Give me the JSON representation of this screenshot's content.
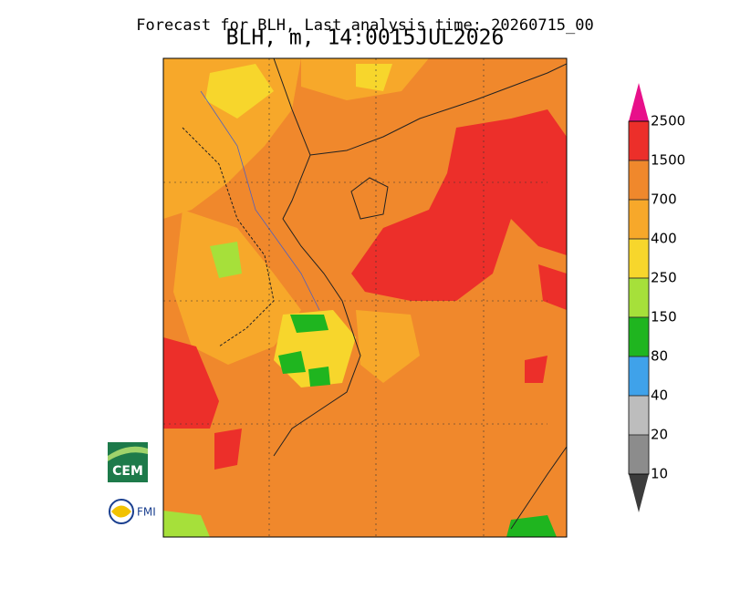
{
  "header": {
    "title": "Forecast for BLH, Last analysis time: 20260715_00",
    "subtitle": "BLH, m, 14:0015JUL2026"
  },
  "colorbar": {
    "levels": [
      10,
      20,
      40,
      80,
      150,
      250,
      400,
      700,
      1500,
      2500
    ],
    "colors": [
      "#8c8c8c",
      "#bdbdbd",
      "#3fa2ea",
      "#1fb51f",
      "#a6e03a",
      "#f7d62c",
      "#f7a82a",
      "#f0882c",
      "#ec2f2a"
    ],
    "under_color": "#3c3c3c",
    "over_color": "#e8108a"
  },
  "logos": {
    "cem": "CEM",
    "fmi": "FMI"
  }
}
